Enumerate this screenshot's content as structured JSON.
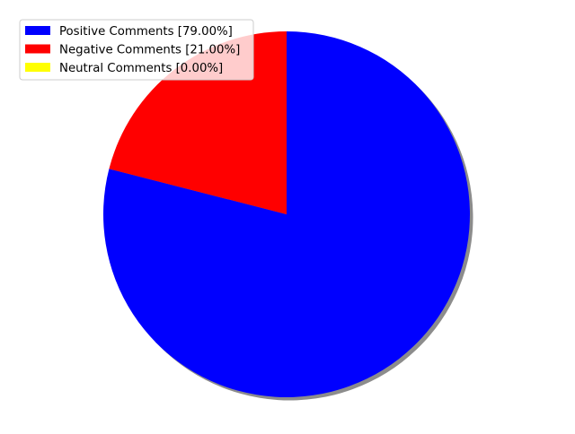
{
  "chart_data": {
    "type": "pie",
    "title": "",
    "start_angle_deg": 90,
    "direction": "clockwise",
    "shadow": true,
    "legend_position": "top-left",
    "slices": [
      {
        "label": "Positive Comments [79.00%]",
        "value": 79.0,
        "color": "#0000ff"
      },
      {
        "label": "Negative Comments [21.00%]",
        "value": 21.0,
        "color": "#ff0000"
      },
      {
        "label": "Neutral Comments [0.00%]",
        "value": 0.0,
        "color": "#ffff00"
      }
    ]
  }
}
